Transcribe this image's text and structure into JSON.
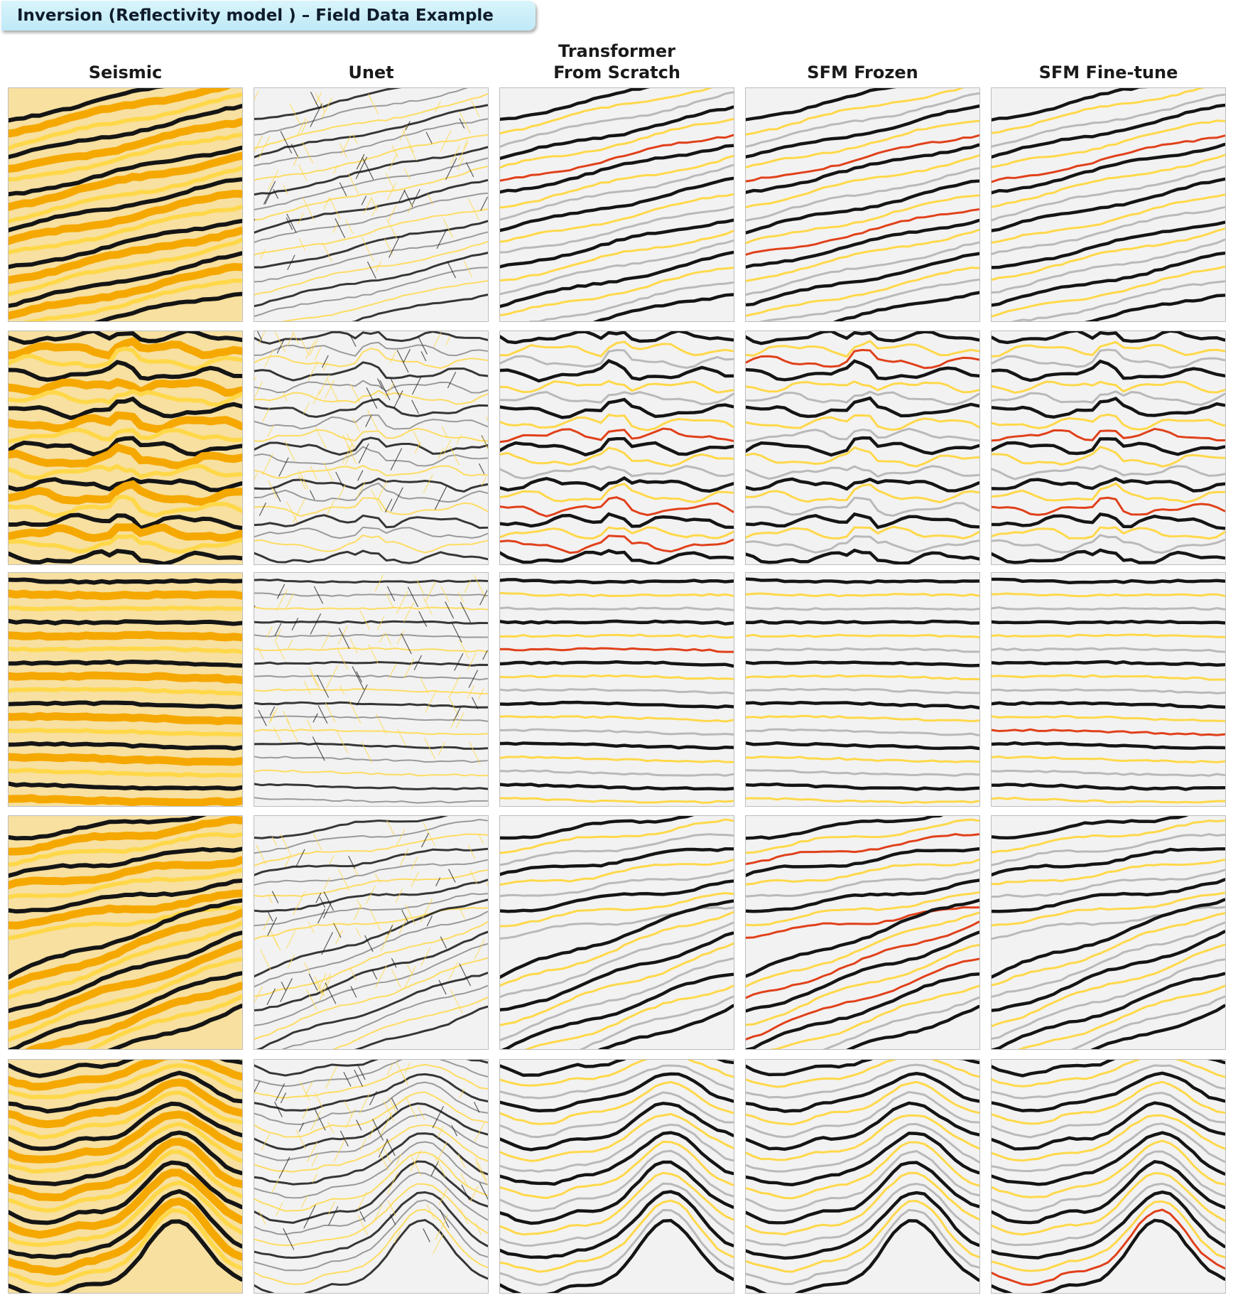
{
  "title": "Inversion (Reflectivity model ) – Field Data Example",
  "columns": [
    {
      "label": "Seismic",
      "style": "seismic"
    },
    {
      "label": "Unet",
      "style": "unet"
    },
    {
      "label": "Transformer\nFrom Scratch",
      "style": "transformer"
    },
    {
      "label": "SFM Frozen",
      "style": "sfm"
    },
    {
      "label": "SFM Fine-tune",
      "style": "sfm"
    }
  ],
  "rows": [
    {
      "pattern": "dipping"
    },
    {
      "pattern": "chaotic"
    },
    {
      "pattern": "flat"
    },
    {
      "pattern": "faulted"
    },
    {
      "pattern": "folded"
    }
  ],
  "colors": {
    "orange": "#f5a800",
    "yellow": "#ffd84a",
    "black": "#151515",
    "red": "#e0401a",
    "gray": "#8a8a8a",
    "background": "#f2f2f2"
  }
}
